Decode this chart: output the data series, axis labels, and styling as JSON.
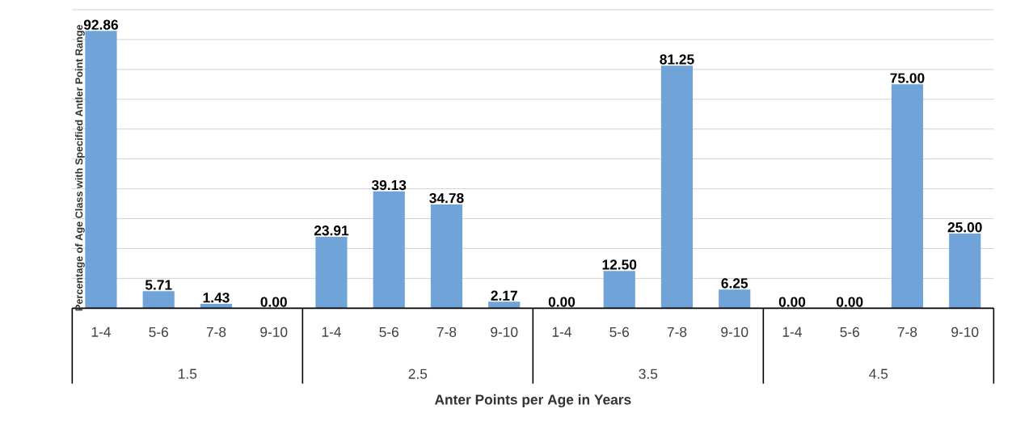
{
  "chart_data": {
    "type": "bar",
    "xlabel": "Anter Points per Age in Years",
    "ylabel": "Percentage of Age Class with Specified Antler Point Range",
    "categories": [
      "1-4",
      "5-6",
      "7-8",
      "9-10",
      "1-4",
      "5-6",
      "7-8",
      "9-10",
      "1-4",
      "5-6",
      "7-8",
      "9-10",
      "1-4",
      "5-6",
      "7-8",
      "9-10"
    ],
    "values": [
      92.86,
      5.71,
      1.43,
      0.0,
      23.91,
      39.13,
      34.78,
      2.17,
      0.0,
      12.5,
      81.25,
      6.25,
      0.0,
      0.0,
      75.0,
      25.0
    ],
    "value_labels": [
      "92.86",
      "5.71",
      "1.43",
      "0.00",
      "23.91",
      "39.13",
      "34.78",
      "2.17",
      "0.00",
      "12.50",
      "81.25",
      "6.25",
      "0.00",
      "0.00",
      "75.00",
      "25.00"
    ],
    "color": "#70a4d9",
    "annotations": [
      "1.5",
      "2.5",
      "3.5",
      "4.5"
    ],
    "ylim": [
      0,
      100
    ],
    "yticks": [
      {
        "value": 0,
        "label": null
      },
      {
        "value": 10,
        "label": null
      },
      {
        "value": 20,
        "label": null
      },
      {
        "value": 30,
        "label": null
      },
      {
        "value": 40,
        "label": null
      },
      {
        "value": 50,
        "label": null
      },
      {
        "value": 60,
        "label": null
      },
      {
        "value": 70,
        "label": null
      },
      {
        "value": 80,
        "label": null
      },
      {
        "value": 90,
        "label": null
      },
      {
        "value": 100,
        "label": null
      }
    ],
    "grid": "y",
    "tick_labels": "x"
  }
}
